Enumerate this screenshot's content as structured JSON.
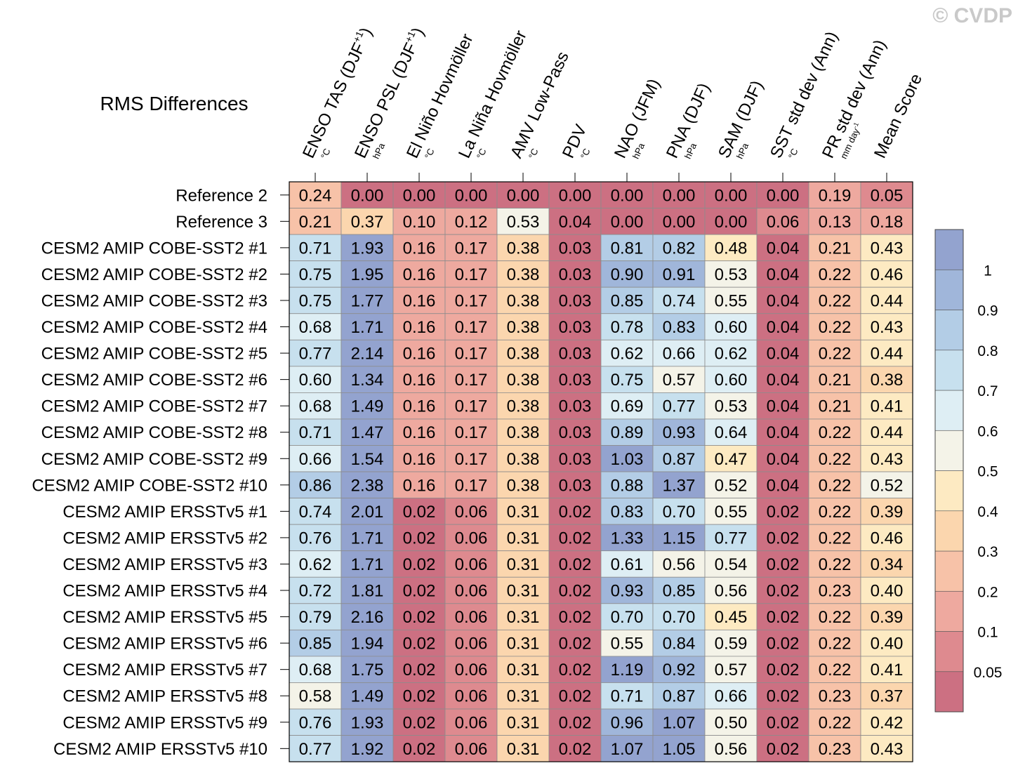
{
  "watermark": "© CVDP",
  "chart_data": {
    "type": "heatmap",
    "title": "RMS Differences",
    "columns": [
      {
        "label": "ENSO TAS (DJF",
        "sup": "+1",
        "close": ")",
        "unit": "°C"
      },
      {
        "label": "ENSO PSL (DJF",
        "sup": "+1",
        "close": ")",
        "unit": "hPa"
      },
      {
        "label": "El Niño Hovmöller",
        "sup": "",
        "close": "",
        "unit": "°C"
      },
      {
        "label": "La Niña Hovmöller",
        "sup": "",
        "close": "",
        "unit": "°C"
      },
      {
        "label": "AMV Low-Pass",
        "sup": "",
        "close": "",
        "unit": "°C"
      },
      {
        "label": "PDV",
        "sup": "",
        "close": "",
        "unit": "°C"
      },
      {
        "label": "NAO (JFM)",
        "sup": "",
        "close": "",
        "unit": "hPa"
      },
      {
        "label": "PNA (DJF)",
        "sup": "",
        "close": "",
        "unit": "hPa"
      },
      {
        "label": "SAM (DJF)",
        "sup": "",
        "close": "",
        "unit": "hPa"
      },
      {
        "label": "SST std dev (Ann)",
        "sup": "",
        "close": "",
        "unit": "°C"
      },
      {
        "label": "PR std dev (Ann)",
        "sup": "",
        "close": "",
        "unit": "mm day",
        "unit_sup": "-1"
      },
      {
        "label": "Mean Score",
        "sup": "",
        "close": "",
        "unit": ""
      }
    ],
    "rows": [
      "Reference 2",
      "Reference 3",
      "CESM2 AMIP COBE-SST2 #1",
      "CESM2 AMIP COBE-SST2 #2",
      "CESM2 AMIP COBE-SST2 #3",
      "CESM2 AMIP COBE-SST2 #4",
      "CESM2 AMIP COBE-SST2 #5",
      "CESM2 AMIP COBE-SST2 #6",
      "CESM2 AMIP COBE-SST2 #7",
      "CESM2 AMIP COBE-SST2 #8",
      "CESM2 AMIP COBE-SST2 #9",
      "CESM2 AMIP COBE-SST2 #10",
      "CESM2 AMIP ERSSTv5 #1",
      "CESM2 AMIP ERSSTv5 #2",
      "CESM2 AMIP ERSSTv5 #3",
      "CESM2 AMIP ERSSTv5 #4",
      "CESM2 AMIP ERSSTv5 #5",
      "CESM2 AMIP ERSSTv5 #6",
      "CESM2 AMIP ERSSTv5 #7",
      "CESM2 AMIP ERSSTv5 #8",
      "CESM2 AMIP ERSSTv5 #9",
      "CESM2 AMIP ERSSTv5 #10"
    ],
    "values": [
      [
        "0.24",
        "0.00",
        "0.00",
        "0.00",
        "0.00",
        "0.00",
        "0.00",
        "0.00",
        "0.00",
        "0.00",
        "0.19",
        "0.05"
      ],
      [
        "0.21",
        "0.37",
        "0.10",
        "0.12",
        "0.53",
        "0.04",
        "0.00",
        "0.00",
        "0.00",
        "0.06",
        "0.13",
        "0.18"
      ],
      [
        "0.71",
        "1.93",
        "0.16",
        "0.17",
        "0.38",
        "0.03",
        "0.81",
        "0.82",
        "0.48",
        "0.04",
        "0.21",
        "0.43"
      ],
      [
        "0.75",
        "1.95",
        "0.16",
        "0.17",
        "0.38",
        "0.03",
        "0.90",
        "0.91",
        "0.53",
        "0.04",
        "0.22",
        "0.46"
      ],
      [
        "0.75",
        "1.77",
        "0.16",
        "0.17",
        "0.38",
        "0.03",
        "0.85",
        "0.74",
        "0.55",
        "0.04",
        "0.22",
        "0.44"
      ],
      [
        "0.68",
        "1.71",
        "0.16",
        "0.17",
        "0.38",
        "0.03",
        "0.78",
        "0.83",
        "0.60",
        "0.04",
        "0.22",
        "0.43"
      ],
      [
        "0.77",
        "2.14",
        "0.16",
        "0.17",
        "0.38",
        "0.03",
        "0.62",
        "0.66",
        "0.62",
        "0.04",
        "0.22",
        "0.44"
      ],
      [
        "0.60",
        "1.34",
        "0.16",
        "0.17",
        "0.38",
        "0.03",
        "0.75",
        "0.57",
        "0.60",
        "0.04",
        "0.21",
        "0.38"
      ],
      [
        "0.68",
        "1.49",
        "0.16",
        "0.17",
        "0.38",
        "0.03",
        "0.69",
        "0.77",
        "0.53",
        "0.04",
        "0.21",
        "0.41"
      ],
      [
        "0.71",
        "1.47",
        "0.16",
        "0.17",
        "0.38",
        "0.03",
        "0.89",
        "0.93",
        "0.64",
        "0.04",
        "0.22",
        "0.44"
      ],
      [
        "0.66",
        "1.54",
        "0.16",
        "0.17",
        "0.38",
        "0.03",
        "1.03",
        "0.87",
        "0.47",
        "0.04",
        "0.22",
        "0.43"
      ],
      [
        "0.86",
        "2.38",
        "0.16",
        "0.17",
        "0.38",
        "0.03",
        "0.88",
        "1.37",
        "0.52",
        "0.04",
        "0.22",
        "0.52"
      ],
      [
        "0.74",
        "2.01",
        "0.02",
        "0.06",
        "0.31",
        "0.02",
        "0.83",
        "0.70",
        "0.55",
        "0.02",
        "0.22",
        "0.39"
      ],
      [
        "0.76",
        "1.71",
        "0.02",
        "0.06",
        "0.31",
        "0.02",
        "1.33",
        "1.15",
        "0.77",
        "0.02",
        "0.22",
        "0.46"
      ],
      [
        "0.62",
        "1.71",
        "0.02",
        "0.06",
        "0.31",
        "0.02",
        "0.61",
        "0.56",
        "0.54",
        "0.02",
        "0.22",
        "0.34"
      ],
      [
        "0.72",
        "1.81",
        "0.02",
        "0.06",
        "0.31",
        "0.02",
        "0.93",
        "0.85",
        "0.56",
        "0.02",
        "0.23",
        "0.40"
      ],
      [
        "0.79",
        "2.16",
        "0.02",
        "0.06",
        "0.31",
        "0.02",
        "0.70",
        "0.70",
        "0.45",
        "0.02",
        "0.22",
        "0.39"
      ],
      [
        "0.85",
        "1.94",
        "0.02",
        "0.06",
        "0.31",
        "0.02",
        "0.55",
        "0.84",
        "0.59",
        "0.02",
        "0.22",
        "0.40"
      ],
      [
        "0.68",
        "1.75",
        "0.02",
        "0.06",
        "0.31",
        "0.02",
        "1.19",
        "0.92",
        "0.57",
        "0.02",
        "0.22",
        "0.41"
      ],
      [
        "0.58",
        "1.49",
        "0.02",
        "0.06",
        "0.31",
        "0.02",
        "0.71",
        "0.87",
        "0.66",
        "0.02",
        "0.23",
        "0.37"
      ],
      [
        "0.76",
        "1.93",
        "0.02",
        "0.06",
        "0.31",
        "0.02",
        "0.96",
        "1.07",
        "0.50",
        "0.02",
        "0.22",
        "0.42"
      ],
      [
        "0.77",
        "1.92",
        "0.02",
        "0.06",
        "0.31",
        "0.02",
        "1.07",
        "1.05",
        "0.56",
        "0.02",
        "0.23",
        "0.43"
      ]
    ],
    "colorbar": {
      "boundaries": [
        "0.05",
        "0.1",
        "0.2",
        "0.3",
        "0.4",
        "0.5",
        "0.6",
        "0.7",
        "0.8",
        "0.9",
        "1"
      ],
      "colors": [
        "#cc7082",
        "#de8a8f",
        "#eea99f",
        "#f7c2a8",
        "#fbd6ae",
        "#fdeac2",
        "#f4f3e8",
        "#deeef4",
        "#c7e0ee",
        "#b3cde6",
        "#a0b6da",
        "#93a3cf"
      ]
    }
  }
}
